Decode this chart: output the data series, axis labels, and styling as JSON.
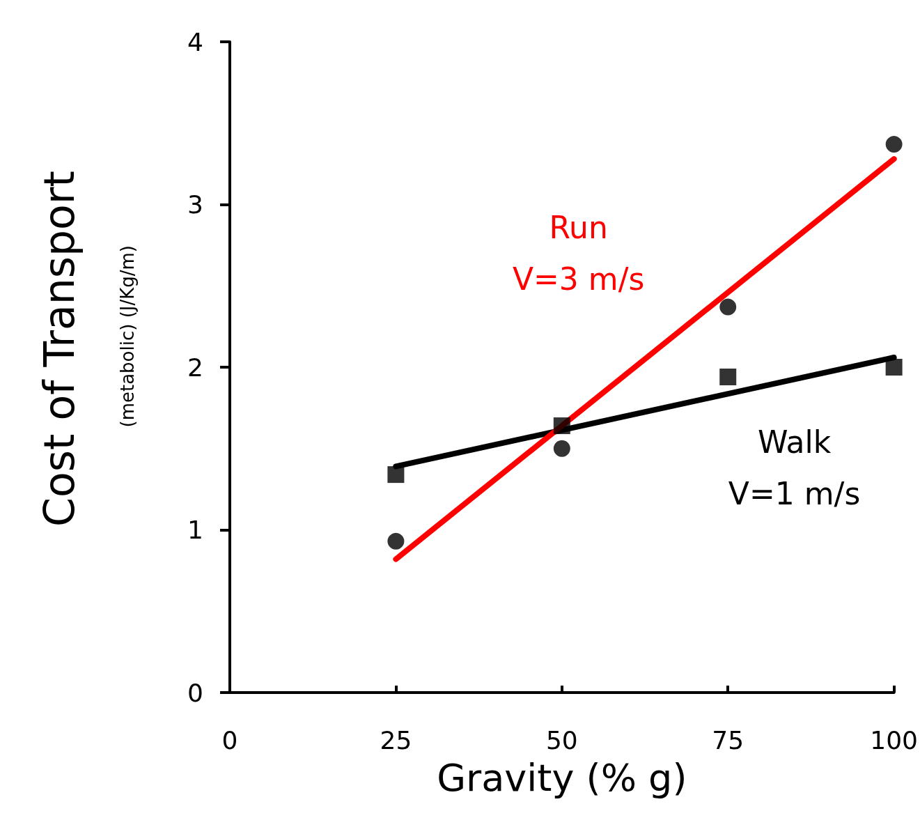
{
  "chart_data": {
    "type": "scatter",
    "xlabel": "Gravity (% g)",
    "ylabel": "Cost of Transport\n(metabolic) (J/Kg/m)",
    "xlim": [
      0,
      100
    ],
    "xticks": [
      0,
      25,
      50,
      75,
      100
    ],
    "ylim": [
      0,
      4
    ],
    "yticks": [
      0,
      1,
      2,
      3,
      4
    ],
    "grid": false,
    "series": [
      {
        "marker": "square",
        "color": "#000000",
        "x": [
          25,
          50,
          75,
          100
        ],
        "values": [
          1.34,
          1.64,
          1.94,
          2.0
        ]
      },
      {
        "marker": "circle",
        "color": "#000000",
        "x": [
          25,
          50,
          75,
          100
        ],
        "values": [
          0.93,
          1.5,
          2.37,
          3.37
        ]
      },
      {
        "type": "line",
        "marker": "none",
        "line_style": "solid",
        "color": "#000000",
        "x": [
          25,
          100
        ],
        "values": [
          1.39,
          2.06
        ]
      },
      {
        "type": "line",
        "marker": "none",
        "line_style": "solid",
        "color": "#ff0000",
        "x": [
          25,
          100
        ],
        "values": [
          0.82,
          3.28
        ]
      }
    ],
    "annotations": [
      "Walk\nV=1 m/s",
      "Run\nV=3 m/s"
    ]
  }
}
